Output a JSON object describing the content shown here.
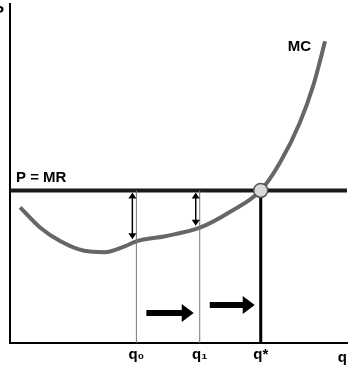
{
  "chart_data": {
    "type": "line",
    "x_label": "q",
    "y_label": "P",
    "xlim": [
      0,
      10
    ],
    "ylim": [
      0,
      10
    ],
    "xticks": [
      {
        "value": 3.75,
        "label": "q₀"
      },
      {
        "value": 5.63,
        "label": "q₁"
      },
      {
        "value": 7.44,
        "label": "q*"
      }
    ],
    "tick_labels": "x",
    "grid": false,
    "series": [
      {
        "name": "MC",
        "color": "#666666",
        "x": [
          0.3,
          0.9,
          1.5,
          2.2,
          2.8,
          3.4,
          3.75,
          4.6,
          5.63,
          6.5,
          7.44,
          8.0,
          8.6,
          9.0,
          9.35
        ],
        "values": [
          4.0,
          3.4,
          3.0,
          2.72,
          2.68,
          2.85,
          3.0,
          3.15,
          3.4,
          3.85,
          4.5,
          5.3,
          6.5,
          7.6,
          8.9
        ]
      },
      {
        "name": "P = MR",
        "color": "#1a1a1a",
        "x": [
          0,
          10
        ],
        "values": [
          4.5,
          4.5
        ]
      }
    ]
  }
}
